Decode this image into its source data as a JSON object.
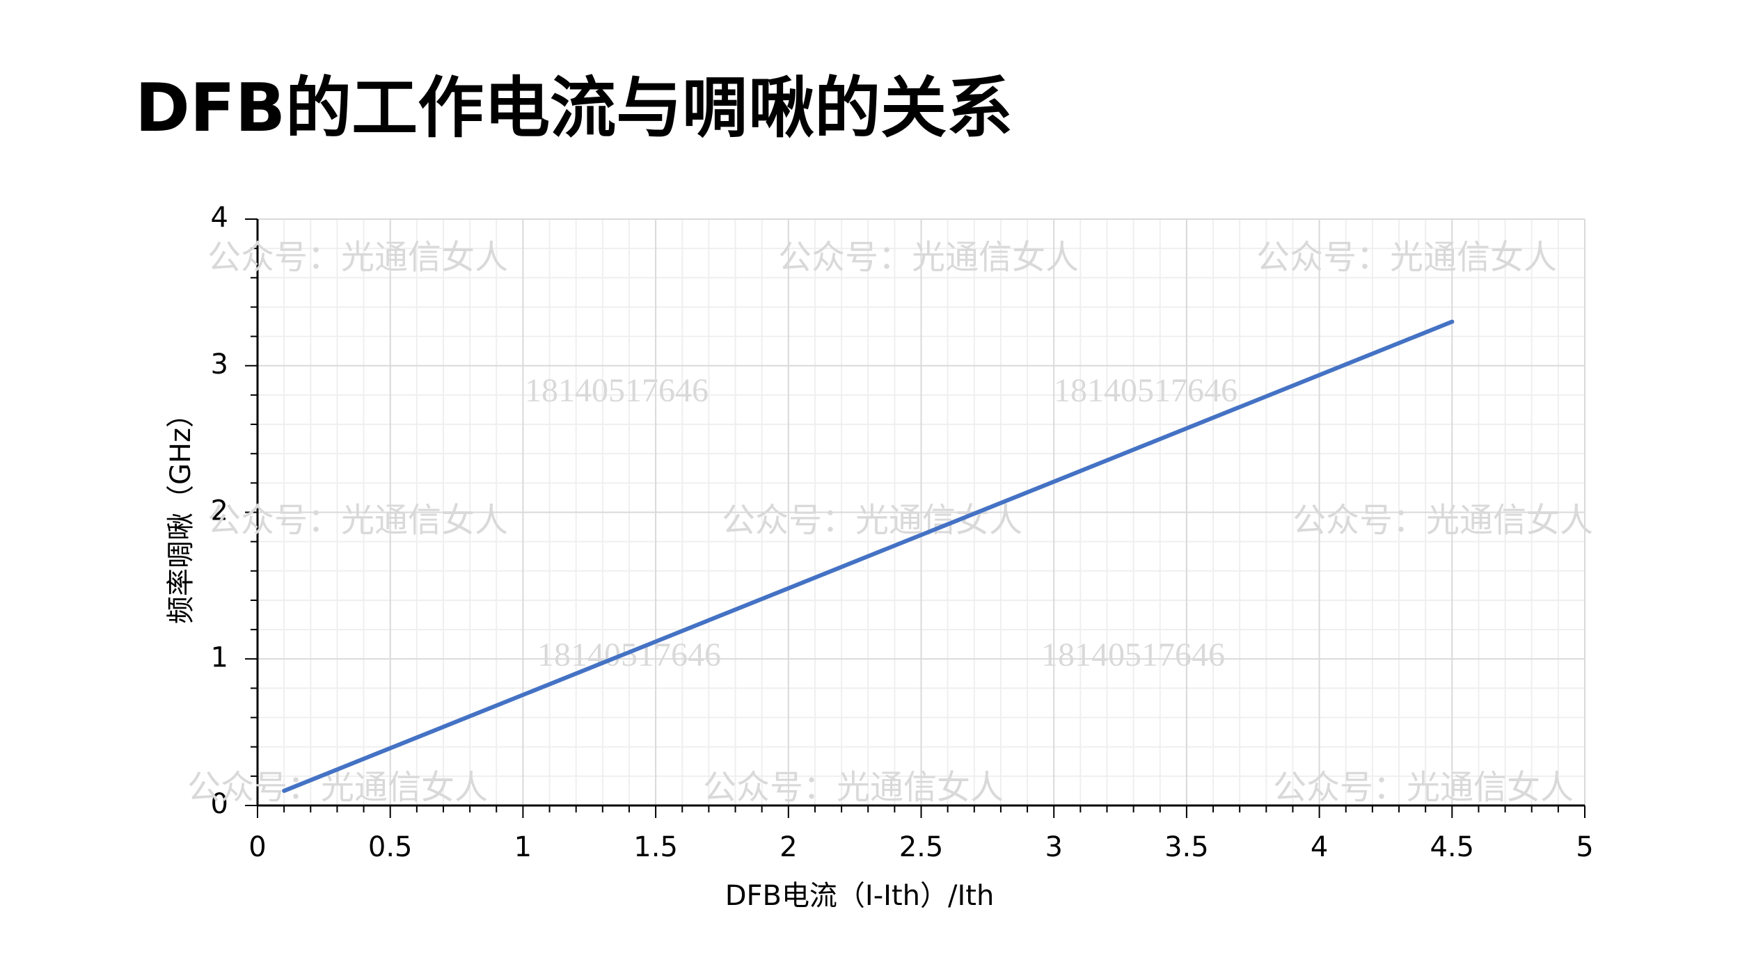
{
  "chart_data": {
    "type": "line",
    "title": "DFB的工作电流与啁啾的关系",
    "x_label": "DFB电流（I-Ith）/Ith",
    "y_label": "频率啁啾（GHz）",
    "series": [
      {
        "name": "频率啁啾",
        "color": "#4472c4",
        "x": [
          0.1,
          4.5
        ],
        "values": [
          0.1,
          3.3
        ]
      }
    ],
    "xlim": [
      0,
      5
    ],
    "xticks": [
      0,
      0.5,
      1,
      1.5,
      2,
      2.5,
      3,
      3.5,
      4,
      4.5,
      5
    ],
    "ylim": [
      0,
      4
    ],
    "yticks": [
      0,
      1,
      2,
      3,
      4
    ],
    "grid": true
  },
  "watermark": {
    "text": "公众号：光通信女人",
    "number": "18140517646"
  }
}
